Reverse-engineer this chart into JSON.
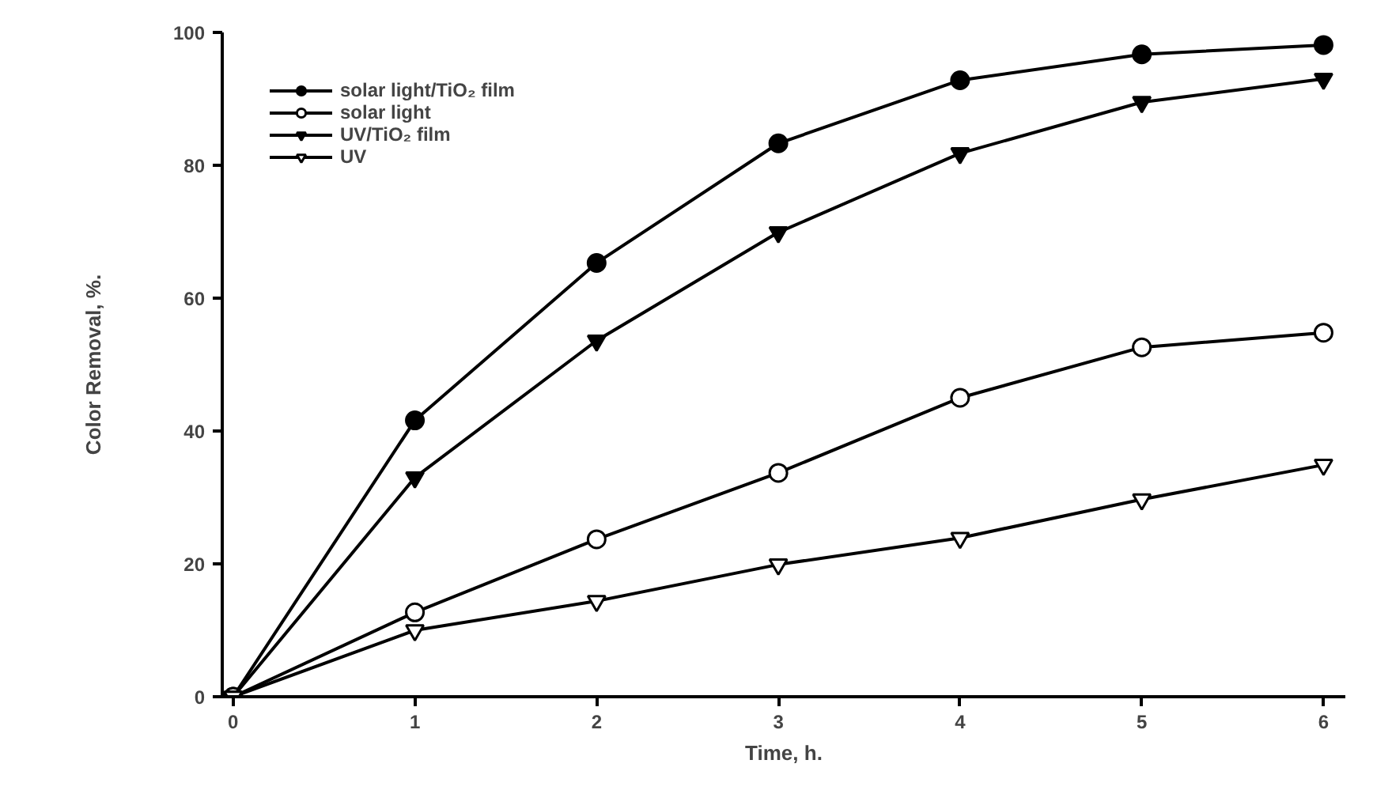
{
  "chart_data": {
    "type": "line",
    "xlabel": "Time, h.",
    "ylabel": "Color Removal, %.",
    "x": [
      0,
      1,
      2,
      3,
      4,
      5,
      6
    ],
    "series": [
      {
        "name": "solar light/TiO₂ film",
        "color": "#000000",
        "marker": "circle",
        "values": [
          0,
          41.6,
          65.3,
          83.3,
          92.8,
          96.7,
          98.1
        ]
      },
      {
        "name": "solar light",
        "color": "#000000",
        "marker": "circle",
        "values": [
          0,
          12.7,
          23.7,
          33.7,
          45,
          52.6,
          54.8
        ]
      },
      {
        "name": "UV/TiO₂ film",
        "color": "#000000",
        "marker": "triangle",
        "values": [
          0,
          33,
          53.6,
          69.9,
          81.8,
          89.5,
          93
        ]
      },
      {
        "name": "UV",
        "color": "#000000",
        "marker": "triangle",
        "values": [
          0,
          10,
          14.4,
          19.9,
          23.9,
          29.7,
          34.9
        ]
      }
    ],
    "xlim": [
      -0.06,
      6.12
    ],
    "ylim": [
      0,
      100
    ],
    "xticks": [
      0,
      1,
      2,
      3,
      4,
      5,
      6
    ],
    "yticks": [
      0,
      20,
      40,
      60,
      80,
      100
    ],
    "legend": "top left",
    "grid": false,
    "line_style": "solid"
  }
}
